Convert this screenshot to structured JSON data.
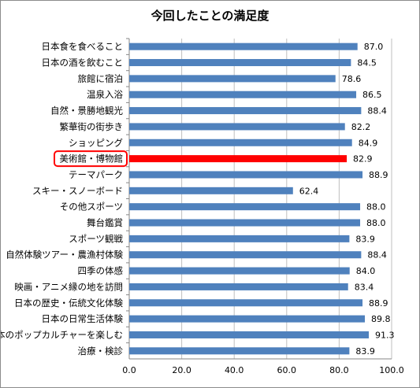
{
  "chart_data": {
    "type": "bar",
    "orientation": "horizontal",
    "title": "今回したことの満足度",
    "categories": [
      "日本食を食べること",
      "日本の酒を飲むこと",
      "旅館に宿泊",
      "温泉入浴",
      "自然・景勝地観光",
      "繁華街の街歩き",
      "ショッピング",
      "美術館・博物館",
      "テーマパーク",
      "スキー・スノーボード",
      "その他スポーツ",
      "舞台鑑賞",
      "スポーツ観戦",
      "自然体験ツアー・農漁村体験",
      "四季の体感",
      "映画・アニメ縁の地を訪問",
      "日本の歴史・伝統文化体験",
      "日本の日常生活体験",
      "日本のポップカルチャーを楽しむ",
      "治療・検診"
    ],
    "values": [
      87.0,
      84.5,
      78.6,
      86.5,
      88.4,
      82.2,
      84.9,
      82.9,
      88.9,
      62.4,
      88.0,
      88.0,
      83.9,
      88.4,
      84.0,
      83.4,
      88.9,
      89.8,
      91.3,
      83.9
    ],
    "value_labels": [
      "87.0",
      "84.5",
      "78.6",
      "86.5",
      "88.4",
      "82.2",
      "84.9",
      "82.9",
      "88.9",
      "62.4",
      "88.0",
      "88.0",
      "83.9",
      "88.4",
      "84.0",
      "83.4",
      "88.9",
      "89.8",
      "91.3",
      "83.9"
    ],
    "highlight_category": "美術館・博物館",
    "xlim": [
      0,
      100
    ],
    "xticks": [
      "0.0",
      "20.0",
      "40.0",
      "60.0",
      "80.0",
      "100.0"
    ],
    "grid": true,
    "legend": "none",
    "colors": {
      "bar": "#4f81bd",
      "highlight_bar": "#ff0000",
      "highlight_outline": "#ff0000",
      "grid": "#bfbfbf"
    }
  }
}
